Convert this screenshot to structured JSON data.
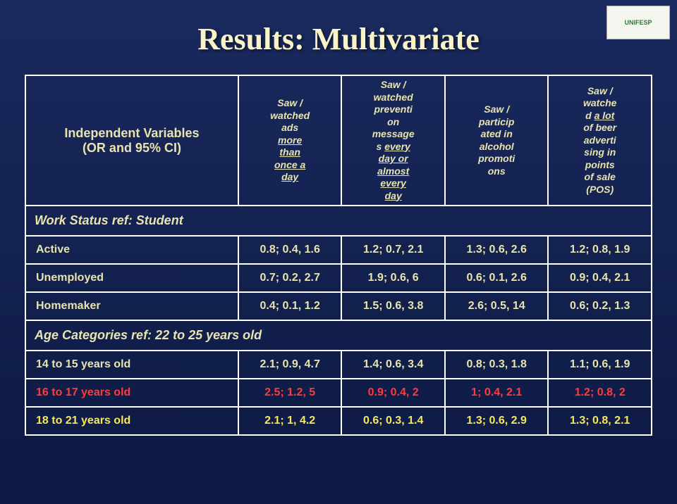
{
  "logo": "UNIFESP",
  "title": "Results: Multivariate",
  "headers": {
    "variables_line1": "Independent Variables",
    "variables_line2": "(OR and 95% CI)",
    "col1_parts": [
      "Saw /",
      "watched",
      "ads",
      " ",
      "more",
      "than",
      "once a",
      "day"
    ],
    "col1_underline_idx": [
      4,
      5,
      6,
      7
    ],
    "col2_parts": [
      "Saw /",
      "watched",
      "preventi",
      "on",
      "message",
      "s ",
      "every",
      "day or",
      "almost",
      "every",
      "day"
    ],
    "col2_underline_idx": [
      6,
      7,
      8,
      9,
      10
    ],
    "col3_parts": [
      "Saw /",
      "particip",
      "ated in",
      "alcohol",
      "promoti",
      "ons"
    ],
    "col3_underline_idx": [],
    "col4_parts": [
      "Saw /",
      "watche",
      "d ",
      "a lot",
      "of beer",
      "adverti",
      "sing in",
      "points",
      "of sale",
      "(POS)"
    ],
    "col4_underline_idx": [
      3
    ]
  },
  "sections": [
    {
      "title_prefix": "Work Status ",
      "title_ref": "ref: Student",
      "rows": [
        {
          "label": "Active",
          "vals": [
            "0.8; 0.4, 1.6",
            "1.2; 0.7, 2.1",
            "1.3; 0.6, 2.6",
            "1.2; 0.8, 1.9"
          ],
          "color": "norm"
        },
        {
          "label": "Unemployed",
          "vals": [
            "0.7; 0.2, 2.7",
            "1.9; 0.6, 6",
            "0.6; 0.1, 2.6",
            "0.9; 0.4, 2.1"
          ],
          "color": "norm"
        },
        {
          "label": "Homemaker",
          "vals": [
            "0.4; 0.1, 1.2",
            "1.5; 0.6, 3.8",
            "2.6; 0.5, 14",
            "0.6; 0.2, 1.3"
          ],
          "color": "norm"
        }
      ]
    },
    {
      "title_prefix": "Age Categories ",
      "title_ref": "ref: 22 to 25 years old",
      "rows": [
        {
          "label": "14 to 15 years old",
          "vals": [
            "2.1; 0.9, 4.7",
            "1.4; 0.6, 3.4",
            "0.8; 0.3, 1.8",
            "1.1; 0.6, 1.9"
          ],
          "color": "norm"
        },
        {
          "label": "16 to 17 years old",
          "vals": [
            "2.5; 1.2, 5",
            "0.9; 0.4, 2",
            "1; 0.4, 2.1",
            "1.2; 0.8, 2"
          ],
          "color": "red"
        },
        {
          "label": "18 to 21 years old",
          "vals": [
            "2.1; 1, 4.2",
            "0.6; 0.3, 1.4",
            "1.3; 0.6, 2.9",
            "1.3; 0.8, 2.1"
          ],
          "color": "yellow"
        }
      ]
    }
  ],
  "styling": {
    "title_color": "#f8f4c8",
    "text_color": "#e8e4b0",
    "red_color": "#ff3b3b",
    "yellow_color": "#f5e85a",
    "bg_gradient_top": "#1a2a5e",
    "bg_gradient_bottom": "#0d1942",
    "border_color": "#ffffff",
    "title_fontsize": 44,
    "header_fontsize": 18,
    "colheader_fontsize": 14,
    "cell_fontsize": 16
  }
}
